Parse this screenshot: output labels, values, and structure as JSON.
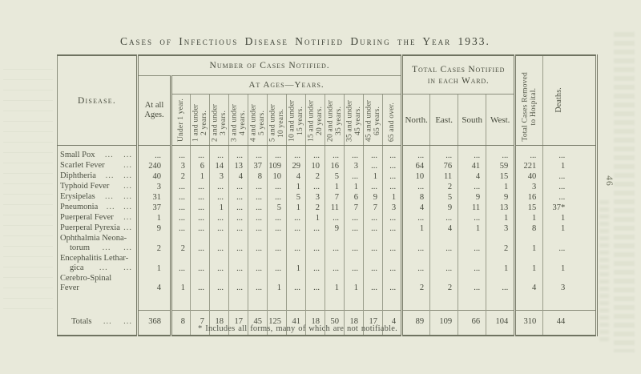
{
  "page": {
    "title": "Cases of Infectious Disease Notified During the Year 1933.",
    "page_number": "46",
    "footnote": "* Includes all forms, many of which are not notifiable."
  },
  "colors": {
    "paper": "#e8e9da",
    "ink": "#4c5042",
    "rule_light": "#9a9d8b",
    "rule_dark": "#6f7361"
  },
  "table": {
    "header": {
      "disease_label": "Disease.",
      "number_of_cases": "Number of Cases Notified.",
      "at_ages_years": "At Ages—Years.",
      "at_all_ages_lines": [
        "At all",
        "Ages."
      ],
      "age_columns": [
        [
          "Under 1 year."
        ],
        [
          "1 and under",
          "2 years."
        ],
        [
          "2 and under",
          "3 years."
        ],
        [
          "3 and under",
          "4 years."
        ],
        [
          "4 and under",
          "5 years."
        ],
        [
          "5 and under",
          "10 years."
        ],
        [
          "10 and under",
          "15 years."
        ],
        [
          "15 and under",
          "20 years."
        ],
        [
          "20 and under",
          "35 years."
        ],
        [
          "35 and under",
          "45 years."
        ],
        [
          "45 and under",
          "65 years."
        ],
        [
          "65 and over."
        ]
      ],
      "ward_group_lines": [
        "Total Cases Notified",
        "in each Ward."
      ],
      "wards": [
        "North.",
        "East.",
        "South",
        "West."
      ],
      "removed_lines": [
        "Total Cases Removed",
        "to Hospital."
      ],
      "deaths_lines": [
        "Deaths."
      ]
    },
    "rows": [
      {
        "label": "Small Pox",
        "leaders": [
          "...",
          "..."
        ],
        "values": [
          "...",
          "...",
          "...",
          "...",
          "...",
          "...",
          "...",
          "...",
          "...",
          "...",
          "...",
          "...",
          "...",
          "...",
          "...",
          "...",
          "...",
          "...",
          "..."
        ]
      },
      {
        "label": "Scarlet Fever",
        "leaders": [
          "..."
        ],
        "values": [
          "240",
          "3",
          "6",
          "14",
          "13",
          "37",
          "109",
          "29",
          "10",
          "16",
          "3",
          "...",
          "...",
          "64",
          "76",
          "41",
          "59",
          "221",
          "1"
        ]
      },
      {
        "label": "Diphtheria",
        "leaders": [
          "...",
          "..."
        ],
        "values": [
          "40",
          "2",
          "1",
          "3",
          "4",
          "8",
          "10",
          "4",
          "2",
          "5",
          "...",
          "1",
          "...",
          "10",
          "11",
          "4",
          "15",
          "40",
          "..."
        ]
      },
      {
        "label": "Typhoid Fever",
        "leaders": [
          "..."
        ],
        "values": [
          "3",
          "...",
          "...",
          "...",
          "...",
          "...",
          "...",
          "1",
          "...",
          "1",
          "1",
          "...",
          "...",
          "...",
          "2",
          "...",
          "1",
          "3",
          "..."
        ]
      },
      {
        "label": "Erysipelas",
        "leaders": [
          "...",
          "..."
        ],
        "values": [
          "31",
          "...",
          "...",
          "...",
          "...",
          "...",
          "...",
          "5",
          "3",
          "7",
          "6",
          "9",
          "1",
          "8",
          "5",
          "9",
          "9",
          "16",
          "..."
        ]
      },
      {
        "label": "Pneumonia",
        "leaders": [
          "...",
          "..."
        ],
        "values": [
          "37",
          "...",
          "...",
          "1",
          "...",
          "...",
          "5",
          "1",
          "2",
          "11",
          "7",
          "7",
          "3",
          "4",
          "9",
          "11",
          "13",
          "15",
          "37*"
        ]
      },
      {
        "label": "Puerperal Fever",
        "leaders": [
          "..."
        ],
        "values": [
          "1",
          "...",
          "...",
          "...",
          "...",
          "...",
          "...",
          "...",
          "1",
          "...",
          "...",
          "...",
          "...",
          "...",
          "...",
          "...",
          "1",
          "1",
          "1"
        ]
      },
      {
        "label": "Puerperal Pyrexia",
        "leaders": [
          "..."
        ],
        "values": [
          "9",
          "...",
          "...",
          "...",
          "...",
          "...",
          "...",
          "...",
          "...",
          "9",
          "...",
          "...",
          "...",
          "1",
          "4",
          "1",
          "3",
          "8",
          "1"
        ]
      },
      {
        "label": "Ophthalmia Neona-",
        "label2": "torum",
        "leaders": [
          "...",
          "..."
        ],
        "values": [
          "2",
          "2",
          "...",
          "...",
          "...",
          "...",
          "...",
          "...",
          "...",
          "...",
          "...",
          "...",
          "...",
          "...",
          "...",
          "...",
          "2",
          "1",
          "..."
        ]
      },
      {
        "label": "Encephalitis Lethar-",
        "label2": "gica",
        "leaders": [
          "...",
          "..."
        ],
        "values": [
          "1",
          "...",
          "...",
          "...",
          "...",
          "...",
          "...",
          "1",
          "...",
          "...",
          "...",
          "...",
          "...",
          "...",
          "...",
          "...",
          "1",
          "1",
          "1"
        ]
      },
      {
        "label": "Cerebro-Spinal Fever",
        "leaders": [],
        "values": [
          "4",
          "1",
          "...",
          "...",
          "...",
          "...",
          "1",
          "...",
          "...",
          "1",
          "1",
          "...",
          "...",
          "2",
          "2",
          "...",
          "...",
          "4",
          "3"
        ]
      }
    ],
    "totals": {
      "label": "Totals",
      "leaders": [
        "...",
        "..."
      ],
      "values": [
        "368",
        "8",
        "7",
        "18",
        "17",
        "45",
        "125",
        "41",
        "18",
        "50",
        "18",
        "17",
        "4",
        "89",
        "109",
        "66",
        "104",
        "310",
        "44"
      ]
    }
  }
}
